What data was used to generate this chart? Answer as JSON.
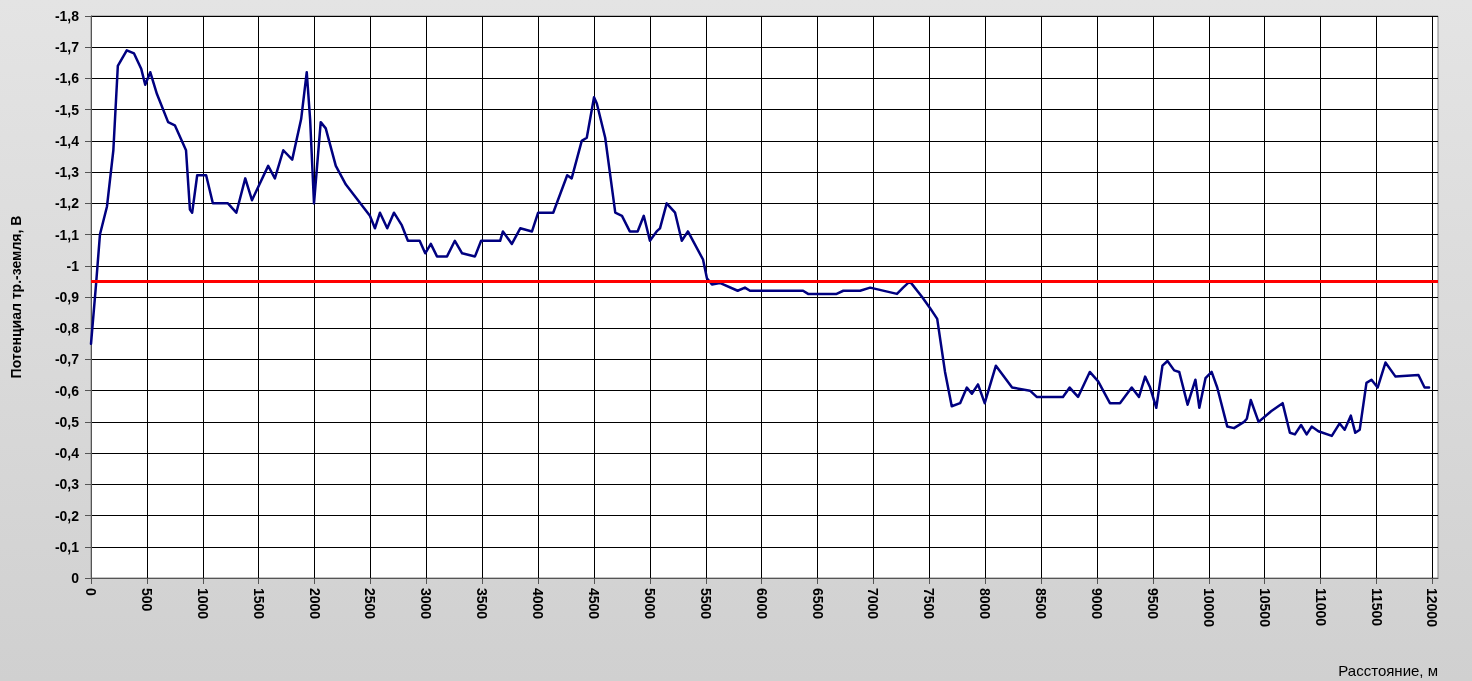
{
  "chart_data": {
    "type": "line",
    "xlabel": "Расстояние, м",
    "ylabel": "Потенциал тр.-земля, В",
    "xlim": [
      0,
      12050
    ],
    "xticks": [
      0,
      500,
      1000,
      1500,
      2000,
      2500,
      3000,
      3500,
      4000,
      4500,
      5000,
      5500,
      6000,
      6500,
      7000,
      7500,
      8000,
      8500,
      9000,
      9500,
      10000,
      10500,
      11000,
      11500,
      12000
    ],
    "ylim": [
      0,
      -1.8
    ],
    "yticks": [
      {
        "value": 0,
        "label": "0"
      },
      {
        "value": -0.1,
        "label": "-0,1"
      },
      {
        "value": -0.2,
        "label": "-0,2"
      },
      {
        "value": -0.3,
        "label": "-0,3"
      },
      {
        "value": -0.4,
        "label": "-0,4"
      },
      {
        "value": -0.5,
        "label": "-0,5"
      },
      {
        "value": -0.6,
        "label": "-0,6"
      },
      {
        "value": -0.7,
        "label": "-0,7"
      },
      {
        "value": -0.8,
        "label": "-0,8"
      },
      {
        "value": -0.9,
        "label": "-0,9"
      },
      {
        "value": -1,
        "label": "-1"
      },
      {
        "value": -1.1,
        "label": "-1,1"
      },
      {
        "value": -1.2,
        "label": "-1,2"
      },
      {
        "value": -1.3,
        "label": "-1,3"
      },
      {
        "value": -1.4,
        "label": "-1,4"
      },
      {
        "value": -1.5,
        "label": "-1,5"
      },
      {
        "value": -1.6,
        "label": "-1,6"
      },
      {
        "value": -1.7,
        "label": "-1,7"
      },
      {
        "value": -1.8,
        "label": "-1,8"
      }
    ],
    "grid": true,
    "marker": "none",
    "line_style": "solid",
    "ref_lines": [
      {
        "axis": "y",
        "value": -0.95,
        "color": "#ff0000"
      }
    ],
    "series": [
      {
        "color": "#000080",
        "x": [
          0,
          45,
          80,
          143,
          200,
          240,
          320,
          385,
          450,
          485,
          530,
          590,
          690,
          750,
          850,
          885,
          905,
          950,
          1030,
          1090,
          1225,
          1300,
          1380,
          1440,
          1585,
          1645,
          1720,
          1800,
          1880,
          1930,
          1960,
          1995,
          2055,
          2100,
          2190,
          2280,
          2495,
          2540,
          2585,
          2650,
          2710,
          2780,
          2835,
          2940,
          2990,
          3040,
          3095,
          3185,
          3255,
          3320,
          3435,
          3490,
          3660,
          3685,
          3765,
          3840,
          3945,
          4000,
          4135,
          4260,
          4300,
          4390,
          4435,
          4500,
          4525,
          4600,
          4690,
          4750,
          4820,
          4890,
          4945,
          5000,
          5060,
          5090,
          5150,
          5225,
          5285,
          5340,
          5475,
          5510,
          5555,
          5625,
          5785,
          5850,
          5895,
          6075,
          6100,
          6370,
          6415,
          6670,
          6730,
          6880,
          6970,
          7210,
          7265,
          7325,
          7435,
          7505,
          7570,
          7640,
          7700,
          7775,
          7835,
          7880,
          7935,
          7995,
          8095,
          8240,
          8400,
          8460,
          8580,
          8695,
          8755,
          8830,
          8935,
          9010,
          9115,
          9205,
          9310,
          9375,
          9430,
          9475,
          9530,
          9585,
          9630,
          9690,
          9735,
          9810,
          9880,
          9915,
          9970,
          10025,
          10075,
          10165,
          10225,
          10315,
          10340,
          10375,
          10445,
          10560,
          10660,
          10725,
          10770,
          10825,
          10875,
          10920,
          10980,
          11100,
          11170,
          11215,
          11270,
          11310,
          11350,
          11410,
          11455,
          11510,
          11580,
          11670,
          11875,
          11930,
          11970
        ],
        "values": [
          -0.75,
          -0.94,
          -1.1,
          -1.19,
          -1.37,
          -1.64,
          -1.69,
          -1.68,
          -1.63,
          -1.58,
          -1.62,
          -1.55,
          -1.46,
          -1.45,
          -1.37,
          -1.18,
          -1.17,
          -1.29,
          -1.29,
          -1.2,
          -1.2,
          -1.17,
          -1.28,
          -1.21,
          -1.32,
          -1.28,
          -1.37,
          -1.34,
          -1.47,
          -1.62,
          -1.47,
          -1.2,
          -1.46,
          -1.44,
          -1.32,
          -1.26,
          -1.16,
          -1.12,
          -1.17,
          -1.12,
          -1.17,
          -1.13,
          -1.08,
          -1.08,
          -1.04,
          -1.07,
          -1.03,
          -1.03,
          -1.08,
          -1.04,
          -1.03,
          -1.08,
          -1.08,
          -1.11,
          -1.07,
          -1.12,
          -1.11,
          -1.17,
          -1.17,
          -1.29,
          -1.28,
          -1.4,
          -1.41,
          -1.54,
          -1.52,
          -1.41,
          -1.17,
          -1.16,
          -1.11,
          -1.11,
          -1.16,
          -1.08,
          -1.11,
          -1.12,
          -1.2,
          -1.17,
          -1.08,
          -1.11,
          -1.02,
          -0.96,
          -0.94,
          -0.945,
          -0.92,
          -0.93,
          -0.92,
          -0.92,
          -0.92,
          -0.92,
          -0.91,
          -0.91,
          -0.92,
          -0.92,
          -0.93,
          -0.91,
          -0.93,
          -0.95,
          -0.9,
          -0.865,
          -0.83,
          -0.66,
          -0.55,
          -0.56,
          -0.61,
          -0.59,
          -0.62,
          -0.56,
          -0.68,
          -0.61,
          -0.6,
          -0.58,
          -0.58,
          -0.58,
          -0.61,
          -0.58,
          -0.66,
          -0.63,
          -0.56,
          -0.56,
          -0.61,
          -0.58,
          -0.645,
          -0.61,
          -0.545,
          -0.68,
          -0.695,
          -0.665,
          -0.66,
          -0.555,
          -0.635,
          -0.545,
          -0.64,
          -0.66,
          -0.61,
          -0.485,
          -0.48,
          -0.5,
          -0.51,
          -0.57,
          -0.5,
          -0.535,
          -0.56,
          -0.465,
          -0.46,
          -0.49,
          -0.46,
          -0.485,
          -0.47,
          -0.455,
          -0.495,
          -0.475,
          -0.52,
          -0.465,
          -0.475,
          -0.625,
          -0.635,
          -0.61,
          -0.69,
          -0.645,
          -0.65,
          -0.61,
          -0.61
        ]
      }
    ]
  }
}
